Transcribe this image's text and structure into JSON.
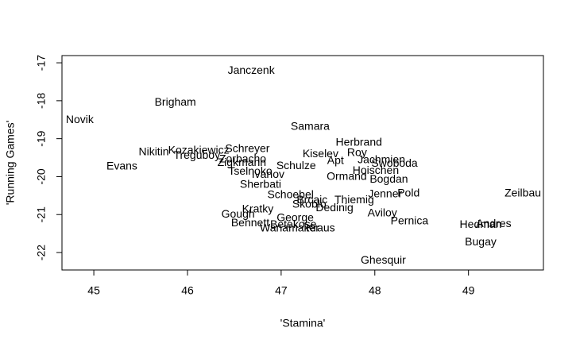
{
  "chart_data": {
    "type": "scatter",
    "x_label": "'Stamina'",
    "y_label": "'Running Games'",
    "labels": [
      "Janczenk",
      "Brigham",
      "Novik",
      "Samara",
      "Herbrand",
      "Kiselev",
      "Roy",
      "Schreyer",
      "Nikitin",
      "Kozakiewicz",
      "Treguboy",
      "Zorbacho",
      "Zigkmann",
      "Evans",
      "Apt",
      "Jachmien",
      "Swoboda",
      "Schulze",
      "Tselnoko",
      "Ivanov",
      "Hoischen",
      "Ormand",
      "Bogdan",
      "Sherbati",
      "Schoebel",
      "Thiemig",
      "Jenner",
      "Pold",
      "Zeilbau",
      "Brcaic",
      "Skoblo",
      "Dedinig",
      "Kratky",
      "Aviloy",
      "Gough",
      "George",
      "Pernica",
      "Bennett",
      "Betekose",
      "Wanamaker",
      "Kraus",
      "Hedman",
      "Andres",
      "Bugay",
      "Ghesquir"
    ],
    "x": [
      46.68,
      45.87,
      44.85,
      47.31,
      47.83,
      47.42,
      47.81,
      46.64,
      45.64,
      46.12,
      46.1,
      46.59,
      46.58,
      45.3,
      47.58,
      48.07,
      48.21,
      47.16,
      46.67,
      46.86,
      48.01,
      47.7,
      48.15,
      46.78,
      47.1,
      47.78,
      48.11,
      48.36,
      49.58,
      47.33,
      47.3,
      47.57,
      46.75,
      48.08,
      46.54,
      47.15,
      48.37,
      46.67,
      47.13,
      47.09,
      47.42,
      49.13,
      49.27,
      49.13,
      48.09
    ],
    "values": [
      -17.21,
      -18.05,
      -18.51,
      -18.69,
      -19.11,
      -19.41,
      -19.38,
      -19.28,
      -19.36,
      -19.32,
      -19.45,
      -19.55,
      -19.64,
      -19.74,
      -19.59,
      -19.57,
      -19.66,
      -19.72,
      -19.87,
      -19.95,
      -19.85,
      -20.01,
      -20.08,
      -20.22,
      -20.49,
      -20.62,
      -20.47,
      -20.45,
      -20.45,
      -20.62,
      -20.74,
      -20.83,
      -20.87,
      -20.97,
      -21.0,
      -21.1,
      -21.18,
      -21.23,
      -21.27,
      -21.37,
      -21.37,
      -21.27,
      -21.25,
      -21.73,
      -22.21
    ],
    "xlim": [
      44.66,
      49.8
    ],
    "ylim": [
      -22.46,
      -16.81
    ],
    "xticks": [
      45,
      46,
      47,
      48,
      49
    ],
    "yticks": [
      -22,
      -21,
      -20,
      -19,
      -18,
      -17
    ]
  }
}
